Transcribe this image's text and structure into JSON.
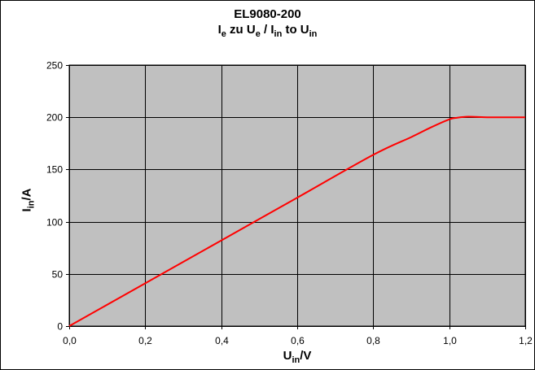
{
  "chart_data": {
    "type": "line",
    "title": "EL9080-200",
    "subtitle": {
      "p1": "I",
      "s1": "e",
      "p2": " zu U",
      "s2": "e",
      "p3": " / I",
      "s3": "in",
      "p4": " to U",
      "s4": "in"
    },
    "xlabel": {
      "main": "U",
      "sub": "in",
      "unit": "/V"
    },
    "ylabel": {
      "main": "I",
      "sub": "in",
      "unit": "/A"
    },
    "xlim": [
      0,
      1.2
    ],
    "ylim": [
      0,
      250
    ],
    "x_ticks": [
      "0,0",
      "0,2",
      "0,4",
      "0,6",
      "0,8",
      "1,0",
      "1,2"
    ],
    "y_ticks": [
      "0",
      "50",
      "100",
      "150",
      "200",
      "250"
    ],
    "grid": true,
    "plot_background": "#c0c0c0",
    "series": [
      {
        "color": "#ff0000",
        "x": [
          0,
          0.2,
          0.4,
          0.6,
          0.8,
          0.9,
          0.95,
          1.0,
          1.02,
          1.05,
          1.1,
          1.15,
          1.2
        ],
        "y": [
          0,
          41,
          82,
          123,
          164,
          181,
          190,
          198,
          199.5,
          200.5,
          200,
          200,
          200
        ]
      }
    ]
  }
}
